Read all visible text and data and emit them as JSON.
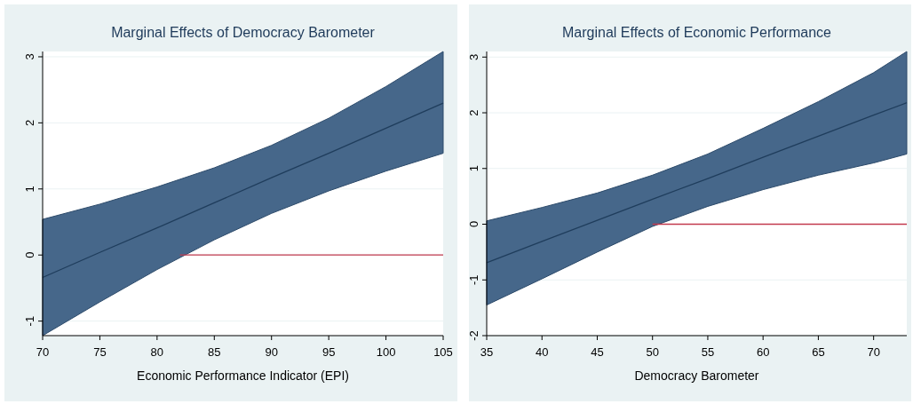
{
  "chart_data": [
    {
      "type": "line",
      "title": "Marginal Effects of Democracy Barometer",
      "xlabel": "Economic Performance Indicator (EPI)",
      "xlim": [
        70,
        105
      ],
      "xticks": [
        70,
        75,
        80,
        85,
        90,
        95,
        100,
        105
      ],
      "ylim": [
        -1.22,
        3.08
      ],
      "yticks": [
        -1,
        0,
        1,
        2,
        3
      ],
      "grid": "y",
      "series": [
        {
          "color": "#1f3d5c",
          "x": [
            70,
            75,
            80,
            85,
            90,
            95,
            100,
            105
          ],
          "values": [
            -0.34,
            0.04,
            0.41,
            0.79,
            1.17,
            1.54,
            1.92,
            2.3
          ],
          "lower": [
            -1.22,
            -0.71,
            -0.22,
            0.23,
            0.63,
            0.97,
            1.27,
            1.54
          ],
          "upper": [
            0.54,
            0.77,
            1.03,
            1.32,
            1.66,
            2.07,
            2.55,
            3.08
          ]
        },
        {
          "color": "#c23a4e",
          "x": [
            82,
            105
          ],
          "values": [
            0,
            0
          ]
        }
      ]
    },
    {
      "type": "line",
      "title": "Marginal Effects of Economic Performance",
      "xlabel": "Democracy Barometer",
      "xlim": [
        35,
        73
      ],
      "xticks": [
        35,
        40,
        45,
        50,
        55,
        60,
        65,
        70
      ],
      "ylim": [
        -2,
        3.1
      ],
      "yticks": [
        -2,
        -1,
        0,
        1,
        2,
        3
      ],
      "grid": "y",
      "series": [
        {
          "color": "#1f3d5c",
          "x": [
            35,
            40,
            45,
            50,
            55,
            60,
            65,
            70,
            73
          ],
          "values": [
            -0.69,
            -0.31,
            0.07,
            0.45,
            0.82,
            1.2,
            1.58,
            1.96,
            2.18
          ],
          "lower": [
            -1.45,
            -0.98,
            -0.5,
            -0.04,
            0.32,
            0.62,
            0.88,
            1.1,
            1.26
          ],
          "upper": [
            0.06,
            0.3,
            0.56,
            0.88,
            1.26,
            1.72,
            2.2,
            2.72,
            3.1
          ]
        },
        {
          "color": "#c23a4e",
          "x": [
            50,
            73
          ],
          "values": [
            0,
            0
          ]
        }
      ]
    }
  ]
}
